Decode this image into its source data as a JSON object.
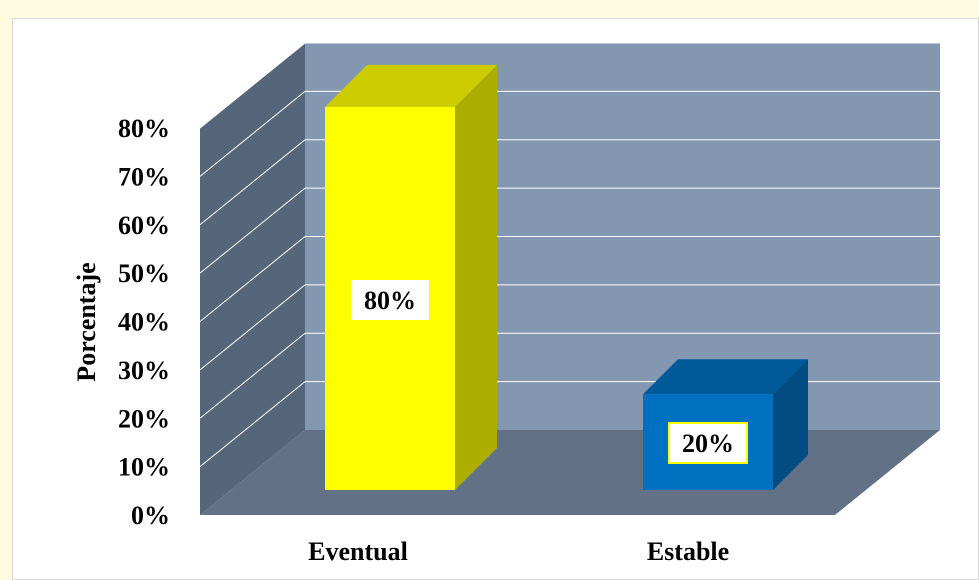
{
  "chart_data": {
    "type": "bar",
    "style": "3d",
    "categories": [
      "Eventual",
      "Estable"
    ],
    "values": [
      80,
      20
    ],
    "value_labels": [
      "80%",
      "20%"
    ],
    "ylabel": "Porcentaje",
    "xlabel": "",
    "ylim": [
      0,
      80
    ],
    "ytick_labels": [
      "0%",
      "10%",
      "20%",
      "30%",
      "40%",
      "50%",
      "60%",
      "70%",
      "80%"
    ],
    "grid": true,
    "legend": "none",
    "colors": {
      "bars": [
        "#ffff00",
        "#0070c0"
      ],
      "wall": "#8497b0",
      "side_wall": "#56667a",
      "floor": "#627185",
      "gridline": "#ffffff"
    }
  }
}
